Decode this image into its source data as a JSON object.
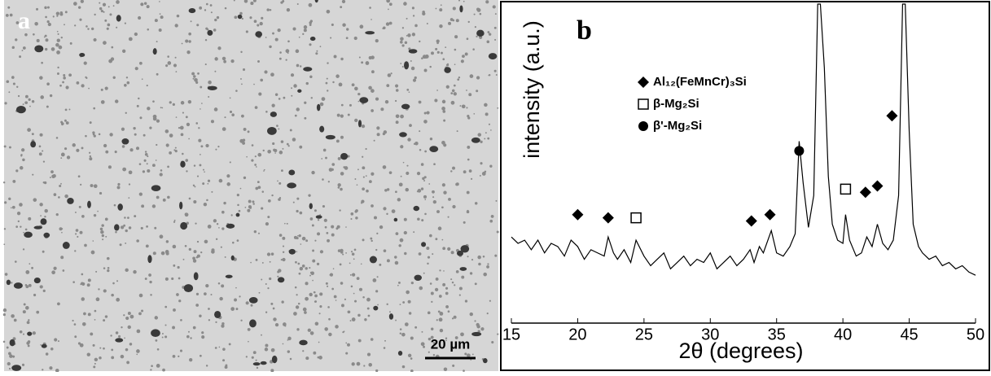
{
  "panels": {
    "a": {
      "label": "a",
      "scale_bar": "20 µm"
    }
  },
  "chart_data": {
    "type": "line",
    "panel_label": "b",
    "x_label": "2θ (degrees)",
    "y_label": "intensity (a.u.)",
    "xlim": [
      15,
      50
    ],
    "xticks": [
      15,
      20,
      25,
      30,
      35,
      40,
      45,
      50
    ],
    "ylim": [
      0,
      100
    ],
    "series": [
      {
        "color": "#000000",
        "x": [
          15,
          15.5,
          16,
          16.5,
          17,
          17.5,
          18,
          18.5,
          19,
          19.5,
          20,
          20.5,
          21,
          21.5,
          22,
          22.3,
          22.7,
          23,
          23.5,
          24,
          24.4,
          25,
          25.5,
          26,
          26.5,
          27,
          27.5,
          28,
          28.5,
          29,
          29.5,
          30,
          30.5,
          31,
          31.5,
          32,
          32.5,
          33,
          33.3,
          33.7,
          34,
          34.6,
          35,
          35.5,
          36,
          36.4,
          36.7,
          37,
          37.4,
          37.8,
          38.1,
          38.3,
          38.6,
          38.9,
          39.2,
          39.6,
          40,
          40.2,
          40.5,
          41,
          41.4,
          41.8,
          42.2,
          42.6,
          43,
          43.4,
          43.8,
          44.2,
          44.5,
          44.7,
          45,
          45.3,
          45.7,
          46,
          46.5,
          47,
          47.5,
          48,
          48.5,
          49,
          49.5,
          50
        ],
        "values": [
          27,
          25,
          26,
          23,
          26,
          22,
          25,
          24,
          21,
          26,
          24,
          20,
          23,
          22,
          21,
          27,
          22,
          20,
          23,
          19,
          26,
          21,
          18,
          20,
          22,
          17,
          19,
          21,
          18,
          20,
          19,
          22,
          17,
          19,
          21,
          18,
          20,
          23,
          19,
          24,
          22,
          29,
          22,
          21,
          24,
          28,
          57,
          44,
          30,
          40,
          100,
          100,
          80,
          46,
          31,
          26,
          25,
          34,
          26,
          21,
          22,
          27,
          24,
          31,
          25,
          23,
          26,
          40,
          100,
          100,
          60,
          31,
          24,
          22,
          20,
          21,
          18,
          19,
          17,
          18,
          16,
          15
        ]
      }
    ],
    "phases": [
      {
        "name": "Al₁₂(FeMnCr)₃Si",
        "marker": "diamond",
        "x": [
          20,
          22.3,
          33.1,
          34.5,
          41.7,
          42.6,
          43.7
        ],
        "values": [
          34,
          33,
          32,
          34,
          41,
          43,
          65
        ]
      },
      {
        "name": "β-Mg₂Si",
        "marker": "square",
        "x": [
          24.4,
          40.2
        ],
        "values": [
          33,
          42
        ]
      },
      {
        "name": "β'-Mg₂Si",
        "marker": "circle",
        "x": [
          36.7
        ],
        "values": [
          54
        ]
      }
    ]
  }
}
